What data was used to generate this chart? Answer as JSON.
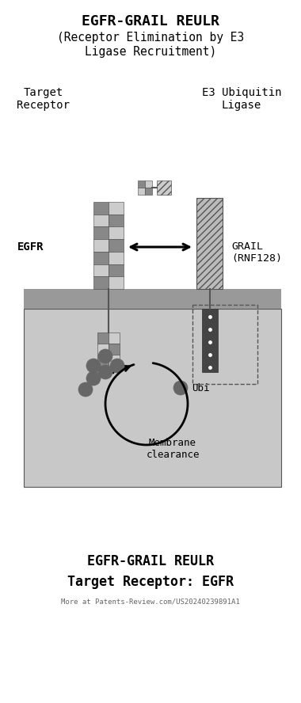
{
  "title_line1": "EGFR-GRAIL REULR",
  "title_line2": "(Receptor Elimination by E3",
  "title_line3": "Ligase Recruitment)",
  "label_target": "Target\nReceptor",
  "label_e3": "E3 Ubiquitin\nLigase",
  "label_egfr": "EGFR",
  "label_grail": "GRAIL\n(RNF128)",
  "label_ubi": "Ubi",
  "label_membrane": "Membrane\nclearance",
  "footer1": "EGFR-GRAIL REULR",
  "footer2": "Target Receptor: EGFR",
  "footer3": "More at Patents-Review.com/US20240239891A1",
  "bg": "#ffffff",
  "mem_color": "#999999",
  "cell_color": "#c8c8c8",
  "checker_dark": "#888888",
  "checker_light": "#cccccc",
  "grail_intra_color": "#444444",
  "ubi_color": "#666666"
}
